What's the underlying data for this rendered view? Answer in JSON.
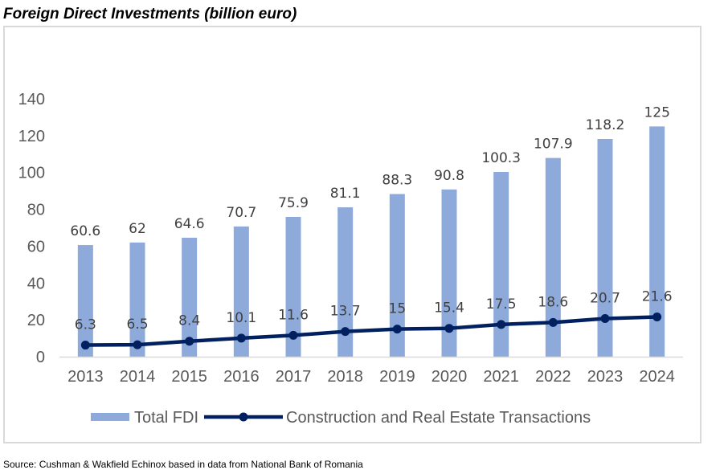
{
  "title": "Foreign Direct Investments (billion euro)",
  "source": "Source: Cushman & Wakfield Echinox based in data from National Bank of Romania",
  "colors": {
    "bar": "#8eaadb",
    "line": "#002060",
    "axis": "#d9d9d9",
    "tick_text": "#595959",
    "label_text": "#404040"
  },
  "chart_data": {
    "type": "bar",
    "title": "Foreign Direct Investments (billion euro)",
    "xlabel": "",
    "ylabel": "",
    "ylim": [
      0,
      140
    ],
    "yticks": [
      0,
      20,
      40,
      60,
      80,
      100,
      120,
      140
    ],
    "grid": false,
    "legend_position": "bottom",
    "categories": [
      "2013",
      "2014",
      "2015",
      "2016",
      "2017",
      "2018",
      "2019",
      "2020",
      "2021",
      "2022",
      "2023",
      "2024"
    ],
    "series": [
      {
        "name": "Total FDI",
        "type": "bar",
        "values": [
          60.6,
          62,
          64.6,
          70.7,
          75.9,
          81.1,
          88.3,
          90.8,
          100.3,
          107.9,
          118.2,
          125
        ],
        "labels": [
          "60.6",
          "62",
          "64.6",
          "70.7",
          "75.9",
          "81.1",
          "88.3",
          "90.8",
          "100.3",
          "107.9",
          "118.2",
          "125"
        ]
      },
      {
        "name": "Construction and Real Estate Transactions",
        "type": "line",
        "values": [
          6.3,
          6.5,
          8.4,
          10.1,
          11.6,
          13.7,
          15,
          15.4,
          17.5,
          18.6,
          20.7,
          21.6
        ],
        "labels": [
          "6.3",
          "6.5",
          "8.4",
          "10.1",
          "11.6",
          "13.7",
          "15",
          "15.4",
          "17.5",
          "18.6",
          "20.7",
          "21.6"
        ]
      }
    ]
  }
}
